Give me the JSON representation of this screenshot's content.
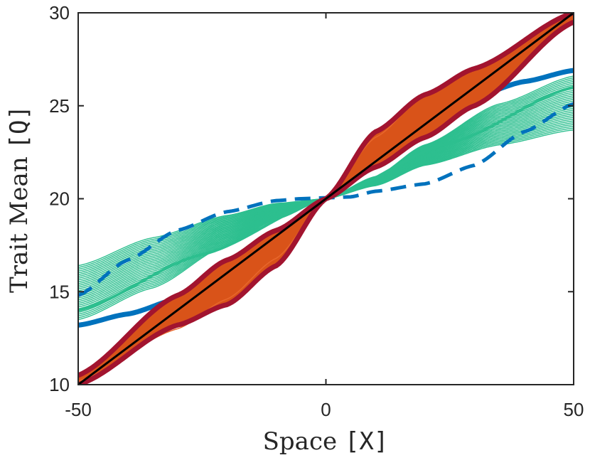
{
  "chart_data": {
    "type": "line",
    "title": "",
    "xlabel_text": "Space ",
    "xlabel_unit": "[X]",
    "ylabel_text": "Trait Mean ",
    "ylabel_unit": "[Q]",
    "xlim": [
      -50,
      50
    ],
    "ylim": [
      10,
      30
    ],
    "xticks": [
      "-50",
      "0",
      "50"
    ],
    "yticks": [
      "10",
      "15",
      "20",
      "25",
      "30"
    ],
    "grid": false,
    "legend": "none",
    "colors": {
      "teal": "#2dbf8f",
      "blue": "#0072bd",
      "orange": "#d95319",
      "crimson": "#a2142f",
      "black": "#000000"
    },
    "series": [
      {
        "role": "teal band upper edge",
        "x": [
          -50,
          -35,
          -20,
          -10,
          0,
          10,
          20,
          35,
          50
        ],
        "y": [
          16.4,
          17.9,
          19.1,
          19.75,
          20.0,
          20.7,
          21.8,
          22.9,
          23.7
        ]
      },
      {
        "role": "teal band lower edge",
        "x": [
          -50,
          -35,
          -20,
          -10,
          0,
          10,
          20,
          35,
          50
        ],
        "y": [
          13.5,
          15.2,
          17.5,
          18.9,
          20.0,
          21.2,
          22.9,
          25.1,
          26.6
        ]
      },
      {
        "role": "teal center",
        "x": [
          -50,
          -25,
          0,
          25,
          50
        ],
        "y": [
          14.0,
          17.0,
          20.0,
          23.0,
          26.0
        ]
      },
      {
        "role": "blue solid",
        "x": [
          -50,
          -40,
          -30,
          -20,
          -10,
          0,
          10,
          20,
          30,
          40,
          50
        ],
        "y": [
          13.2,
          13.8,
          14.6,
          15.9,
          18.0,
          20.0,
          22.0,
          24.2,
          25.5,
          26.3,
          26.9
        ]
      },
      {
        "role": "blue dashed",
        "x": [
          -50,
          -40,
          -30,
          -20,
          -10,
          -5,
          0,
          5,
          10,
          20,
          30,
          40,
          50
        ],
        "y": [
          14.8,
          16.7,
          18.3,
          19.3,
          19.9,
          20.0,
          20.05,
          20.1,
          20.4,
          20.8,
          21.8,
          23.6,
          25.1
        ]
      },
      {
        "role": "orange band",
        "x": [
          -50,
          -30,
          -20,
          -10,
          0,
          10,
          20,
          30,
          50
        ],
        "y": [
          10.2,
          13.0,
          14.6,
          16.8,
          20.0,
          23.3,
          25.6,
          26.9,
          29.9
        ]
      },
      {
        "role": "crimson outer upper",
        "x": [
          -50,
          -30,
          -20,
          -10,
          0,
          10,
          20,
          30,
          50
        ],
        "y": [
          10.5,
          14.8,
          16.7,
          18.3,
          20.0,
          23.6,
          25.6,
          27.0,
          30.0
        ]
      },
      {
        "role": "crimson outer lower",
        "x": [
          -50,
          -30,
          -20,
          -10,
          0,
          10,
          20,
          30,
          50
        ],
        "y": [
          10.0,
          13.2,
          14.3,
          16.4,
          20.0,
          21.7,
          23.3,
          25.0,
          29.5
        ]
      },
      {
        "role": "black reference",
        "x": [
          -50,
          50
        ],
        "y": [
          10,
          30
        ]
      }
    ]
  }
}
